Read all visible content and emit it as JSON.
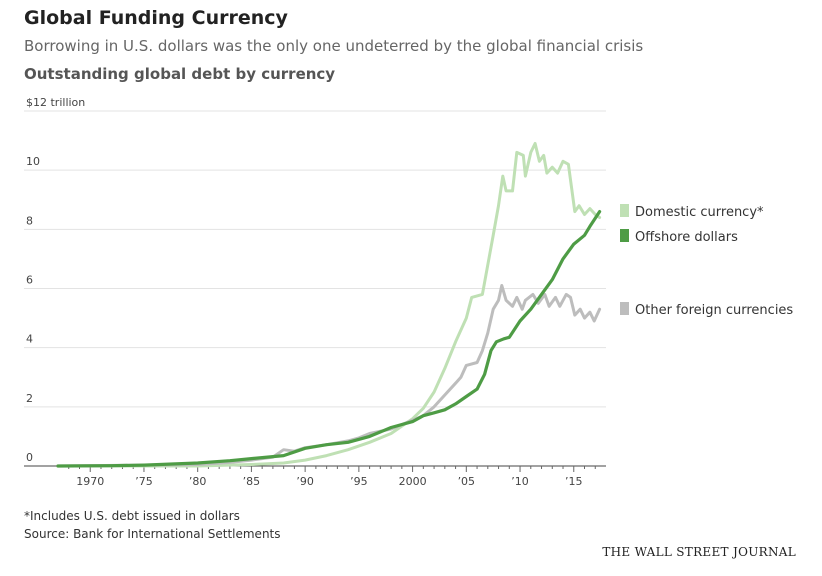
{
  "header": {
    "title": "Global Funding Currency",
    "subtitle": "Borrowing in U.S. dollars was the only one undeterred by the global financial crisis"
  },
  "footer": {
    "footnote": "*Includes U.S. debt issued in dollars",
    "source": "Source: Bank for International Settlements",
    "brand": "THE WALL STREET JOURNAL"
  },
  "chart_data": {
    "type": "line",
    "title": "Outstanding global debt by currency",
    "ylabel": "",
    "xlabel": "",
    "xlim": [
      1967,
      2018
    ],
    "ylim": [
      0,
      12
    ],
    "y_ticks": [
      {
        "value": 0,
        "label": "0"
      },
      {
        "value": 2,
        "label": "2"
      },
      {
        "value": 4,
        "label": "4"
      },
      {
        "value": 6,
        "label": "6"
      },
      {
        "value": 8,
        "label": "8"
      },
      {
        "value": 10,
        "label": "10"
      },
      {
        "value": 12,
        "label": "$12 trillion"
      }
    ],
    "x_ticks": [
      {
        "value": 1970,
        "label": "1970"
      },
      {
        "value": 1975,
        "label": "’75"
      },
      {
        "value": 1980,
        "label": "’80"
      },
      {
        "value": 1985,
        "label": "’85"
      },
      {
        "value": 1990,
        "label": "’90"
      },
      {
        "value": 1995,
        "label": "’95"
      },
      {
        "value": 2000,
        "label": "2000"
      },
      {
        "value": 2005,
        "label": "’05"
      },
      {
        "value": 2010,
        "label": "’10"
      },
      {
        "value": 2015,
        "label": "’15"
      }
    ],
    "grid": true,
    "legend": "right",
    "series": [
      {
        "name": "Domestic currency*",
        "color": "#bfe0b4",
        "points": [
          [
            1967,
            0
          ],
          [
            1980,
            0
          ],
          [
            1985,
            0.05
          ],
          [
            1988,
            0.1
          ],
          [
            1990,
            0.2
          ],
          [
            1992,
            0.35
          ],
          [
            1994,
            0.55
          ],
          [
            1996,
            0.8
          ],
          [
            1998,
            1.1
          ],
          [
            1999,
            1.35
          ],
          [
            2000,
            1.6
          ],
          [
            2001,
            1.95
          ],
          [
            2002,
            2.5
          ],
          [
            2003,
            3.3
          ],
          [
            2004,
            4.2
          ],
          [
            2005,
            5.0
          ],
          [
            2005.5,
            5.7
          ],
          [
            2006.5,
            5.8
          ],
          [
            2007,
            6.8
          ],
          [
            2007.5,
            7.8
          ],
          [
            2008,
            8.8
          ],
          [
            2008.4,
            9.8
          ],
          [
            2008.7,
            9.3
          ],
          [
            2009.3,
            9.3
          ],
          [
            2009.7,
            10.6
          ],
          [
            2010.3,
            10.5
          ],
          [
            2010.5,
            9.8
          ],
          [
            2011,
            10.6
          ],
          [
            2011.4,
            10.9
          ],
          [
            2011.8,
            10.3
          ],
          [
            2012.2,
            10.5
          ],
          [
            2012.5,
            9.9
          ],
          [
            2013,
            10.1
          ],
          [
            2013.5,
            9.9
          ],
          [
            2014,
            10.3
          ],
          [
            2014.5,
            10.2
          ],
          [
            2014.8,
            9.4
          ],
          [
            2015.1,
            8.6
          ],
          [
            2015.5,
            8.8
          ],
          [
            2016,
            8.5
          ],
          [
            2016.5,
            8.7
          ],
          [
            2017,
            8.5
          ],
          [
            2017.4,
            8.4
          ]
        ]
      },
      {
        "name": "Offshore dollars",
        "color": "#4e9c45",
        "points": [
          [
            1967,
            0
          ],
          [
            1972,
            0.01
          ],
          [
            1975,
            0.03
          ],
          [
            1980,
            0.1
          ],
          [
            1983,
            0.18
          ],
          [
            1985,
            0.25
          ],
          [
            1988,
            0.35
          ],
          [
            1990,
            0.6
          ],
          [
            1992,
            0.72
          ],
          [
            1994,
            0.8
          ],
          [
            1996,
            1.0
          ],
          [
            1998,
            1.3
          ],
          [
            2000,
            1.5
          ],
          [
            2001,
            1.7
          ],
          [
            2002,
            1.8
          ],
          [
            2003,
            1.9
          ],
          [
            2004,
            2.1
          ],
          [
            2005,
            2.35
          ],
          [
            2006,
            2.6
          ],
          [
            2006.7,
            3.1
          ],
          [
            2007.3,
            3.9
          ],
          [
            2007.8,
            4.2
          ],
          [
            2008.5,
            4.3
          ],
          [
            2009,
            4.35
          ],
          [
            2010,
            4.9
          ],
          [
            2011,
            5.3
          ],
          [
            2012,
            5.8
          ],
          [
            2013,
            6.3
          ],
          [
            2014,
            7.0
          ],
          [
            2015,
            7.5
          ],
          [
            2016,
            7.8
          ],
          [
            2016.5,
            8.1
          ],
          [
            2017.4,
            8.6
          ]
        ]
      },
      {
        "name": "Other foreign currencies",
        "color": "#bdbdbd",
        "points": [
          [
            1967,
            0
          ],
          [
            1980,
            0.05
          ],
          [
            1983,
            0.12
          ],
          [
            1985,
            0.2
          ],
          [
            1987,
            0.3
          ],
          [
            1988,
            0.55
          ],
          [
            1989,
            0.5
          ],
          [
            1990,
            0.62
          ],
          [
            1992,
            0.72
          ],
          [
            1994,
            0.85
          ],
          [
            1995,
            0.95
          ],
          [
            1996,
            1.1
          ],
          [
            1998,
            1.25
          ],
          [
            2000,
            1.55
          ],
          [
            2001,
            1.7
          ],
          [
            2002,
            2.0
          ],
          [
            2003,
            2.4
          ],
          [
            2004,
            2.8
          ],
          [
            2004.5,
            3.0
          ],
          [
            2005,
            3.4
          ],
          [
            2006,
            3.5
          ],
          [
            2006.5,
            3.9
          ],
          [
            2007,
            4.5
          ],
          [
            2007.5,
            5.3
          ],
          [
            2008,
            5.6
          ],
          [
            2008.3,
            6.1
          ],
          [
            2008.7,
            5.6
          ],
          [
            2009.3,
            5.4
          ],
          [
            2009.7,
            5.7
          ],
          [
            2010.2,
            5.3
          ],
          [
            2010.5,
            5.6
          ],
          [
            2011.2,
            5.8
          ],
          [
            2011.7,
            5.5
          ],
          [
            2012.3,
            5.8
          ],
          [
            2012.7,
            5.4
          ],
          [
            2013.3,
            5.7
          ],
          [
            2013.7,
            5.4
          ],
          [
            2014.3,
            5.8
          ],
          [
            2014.7,
            5.7
          ],
          [
            2015.1,
            5.1
          ],
          [
            2015.6,
            5.3
          ],
          [
            2016,
            5.0
          ],
          [
            2016.5,
            5.2
          ],
          [
            2016.9,
            4.9
          ],
          [
            2017.4,
            5.3
          ]
        ]
      }
    ]
  }
}
